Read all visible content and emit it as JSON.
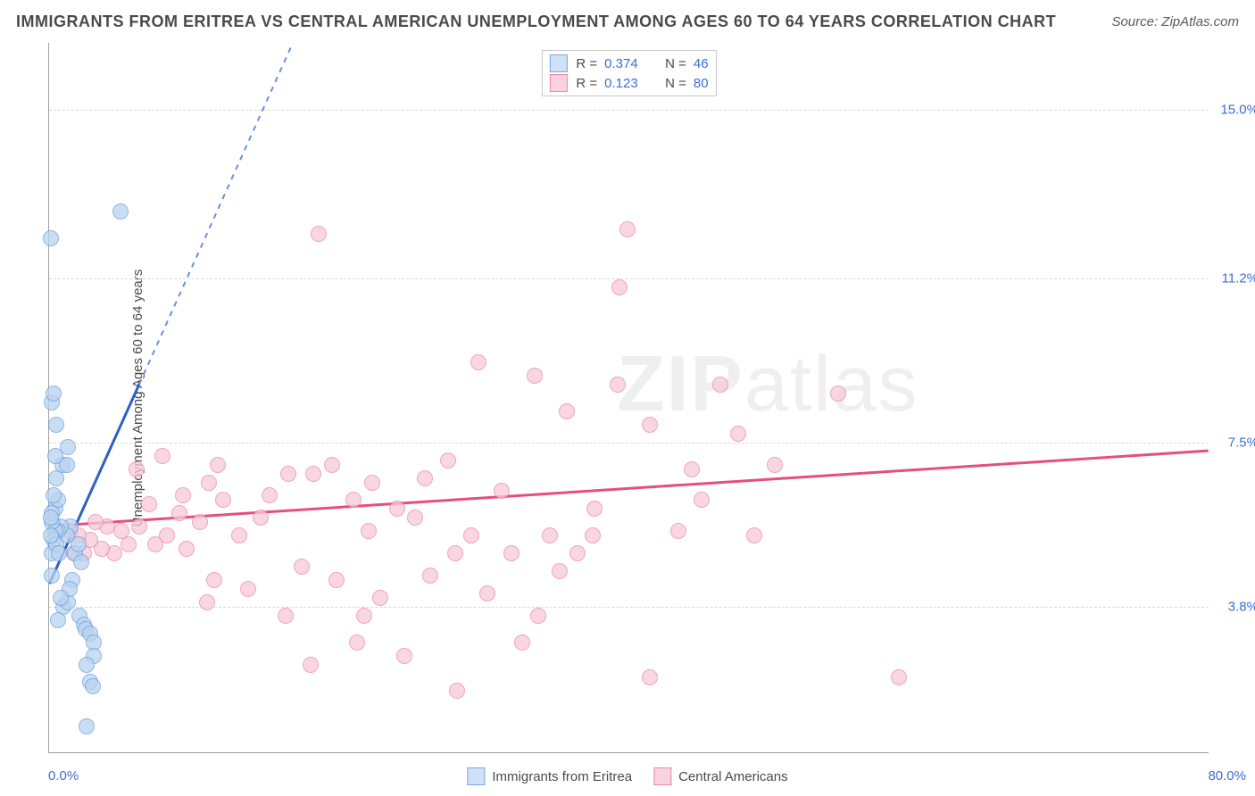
{
  "title": "IMMIGRANTS FROM ERITREA VS CENTRAL AMERICAN UNEMPLOYMENT AMONG AGES 60 TO 64 YEARS CORRELATION CHART",
  "source": "Source: ZipAtlas.com",
  "chart": {
    "type": "scatter",
    "ylabel": "Unemployment Among Ages 60 to 64 years",
    "xlim": [
      0,
      80
    ],
    "ylim": [
      0.5,
      16.5
    ],
    "yticks": [
      {
        "v": 3.8,
        "label": "3.8%"
      },
      {
        "v": 7.5,
        "label": "7.5%"
      },
      {
        "v": 11.2,
        "label": "11.2%"
      },
      {
        "v": 15.0,
        "label": "15.0%"
      }
    ],
    "xtick_left": "0.0%",
    "xtick_right": "80.0%",
    "background_color": "#ffffff",
    "grid_color": "#d8d8d8",
    "series": [
      {
        "name": "Immigrants from Eritrea",
        "marker_fill": "#b9d3f0",
        "marker_stroke": "#6a9fe0",
        "swatch_fill": "#cfe1f7",
        "swatch_stroke": "#7aa8e0",
        "marker_radius": 9,
        "trend_solid_color": "#2f5fc4",
        "trend_dashed_color": "#6a8fe0",
        "trend_point_1": {
          "x": 0,
          "y": 4.3
        },
        "trend_point_2": {
          "x": 6.2,
          "y": 8.8
        },
        "trend_extend_to_y": 16.5,
        "R": "0.374",
        "N": "46"
      },
      {
        "name": "Central Americans",
        "marker_fill": "#f7c9d6",
        "marker_stroke": "#e88aa5",
        "swatch_fill": "#f9d2de",
        "swatch_stroke": "#e88aa5",
        "marker_radius": 9,
        "trend_solid_color": "#e54f7b",
        "trend_point_1": {
          "x": 0,
          "y": 5.6
        },
        "trend_point_2": {
          "x": 80,
          "y": 7.3
        },
        "R": "0.123",
        "N": "80"
      }
    ],
    "watermark_bold": "ZIP",
    "watermark_rest": "atlas"
  },
  "points_blue": [
    [
      0.1,
      12.1
    ],
    [
      4.9,
      12.7
    ],
    [
      0.2,
      8.4
    ],
    [
      0.3,
      8.6
    ],
    [
      0.5,
      7.9
    ],
    [
      0.2,
      4.5
    ],
    [
      1.0,
      3.8
    ],
    [
      1.3,
      3.9
    ],
    [
      2.1,
      3.6
    ],
    [
      2.4,
      3.4
    ],
    [
      2.5,
      3.3
    ],
    [
      2.8,
      3.2
    ],
    [
      3.1,
      3.0
    ],
    [
      3.1,
      2.7
    ],
    [
      2.6,
      2.5
    ],
    [
      2.8,
      2.1
    ],
    [
      3.0,
      2.0
    ],
    [
      2.6,
      1.1
    ],
    [
      1.5,
      5.6
    ],
    [
      1.2,
      5.4
    ],
    [
      0.8,
      5.6
    ],
    [
      0.6,
      5.5
    ],
    [
      0.4,
      5.5
    ],
    [
      0.3,
      5.3
    ],
    [
      0.2,
      5.0
    ],
    [
      0.5,
      5.2
    ],
    [
      0.7,
      5.0
    ],
    [
      0.4,
      6.0
    ],
    [
      0.6,
      6.2
    ],
    [
      0.3,
      6.3
    ],
    [
      0.5,
      6.7
    ],
    [
      0.9,
      7.0
    ],
    [
      1.2,
      7.0
    ],
    [
      1.3,
      7.4
    ],
    [
      0.4,
      7.2
    ],
    [
      0.2,
      5.7
    ],
    [
      0.2,
      5.9
    ],
    [
      0.15,
      5.4
    ],
    [
      0.1,
      5.8
    ],
    [
      1.8,
      5.0
    ],
    [
      2.0,
      5.2
    ],
    [
      2.2,
      4.8
    ],
    [
      1.6,
      4.4
    ],
    [
      1.4,
      4.2
    ],
    [
      0.8,
      4.0
    ],
    [
      0.6,
      3.5
    ]
  ],
  "points_pink": [
    [
      39.9,
      12.3
    ],
    [
      18.6,
      12.2
    ],
    [
      39.3,
      11.0
    ],
    [
      29.6,
      9.3
    ],
    [
      39.2,
      8.8
    ],
    [
      46.3,
      8.8
    ],
    [
      54.4,
      8.6
    ],
    [
      41.4,
      7.9
    ],
    [
      35.7,
      8.2
    ],
    [
      47.5,
      7.7
    ],
    [
      44.3,
      6.9
    ],
    [
      50.0,
      7.0
    ],
    [
      45.0,
      6.2
    ],
    [
      48.6,
      5.4
    ],
    [
      43.4,
      5.5
    ],
    [
      37.5,
      5.4
    ],
    [
      34.5,
      5.4
    ],
    [
      31.9,
      5.0
    ],
    [
      29.1,
      5.4
    ],
    [
      28.0,
      5.0
    ],
    [
      25.2,
      5.8
    ],
    [
      24.0,
      6.0
    ],
    [
      22.0,
      5.5
    ],
    [
      21.0,
      6.2
    ],
    [
      22.3,
      6.6
    ],
    [
      25.9,
      6.7
    ],
    [
      27.5,
      7.1
    ],
    [
      19.5,
      7.0
    ],
    [
      18.2,
      6.8
    ],
    [
      16.5,
      6.8
    ],
    [
      15.2,
      6.3
    ],
    [
      14.6,
      5.8
    ],
    [
      13.1,
      5.4
    ],
    [
      12.0,
      6.2
    ],
    [
      11.0,
      6.6
    ],
    [
      11.6,
      7.0
    ],
    [
      10.4,
      5.7
    ],
    [
      9.5,
      5.1
    ],
    [
      9.0,
      5.9
    ],
    [
      8.1,
      5.4
    ],
    [
      7.3,
      5.2
    ],
    [
      6.9,
      6.1
    ],
    [
      6.2,
      5.6
    ],
    [
      5.5,
      5.2
    ],
    [
      5.0,
      5.5
    ],
    [
      4.5,
      5.0
    ],
    [
      4.0,
      5.6
    ],
    [
      3.6,
      5.1
    ],
    [
      3.2,
      5.7
    ],
    [
      2.8,
      5.3
    ],
    [
      2.4,
      5.0
    ],
    [
      2.0,
      5.4
    ],
    [
      1.7,
      5.0
    ],
    [
      1.4,
      5.5
    ],
    [
      17.4,
      4.7
    ],
    [
      19.8,
      4.4
    ],
    [
      22.8,
      4.0
    ],
    [
      21.7,
      3.6
    ],
    [
      16.3,
      3.6
    ],
    [
      13.7,
      4.2
    ],
    [
      11.4,
      4.4
    ],
    [
      10.9,
      3.9
    ],
    [
      21.2,
      3.0
    ],
    [
      32.6,
      3.0
    ],
    [
      24.5,
      2.7
    ],
    [
      28.1,
      1.9
    ],
    [
      18.0,
      2.5
    ],
    [
      41.4,
      2.2
    ],
    [
      58.6,
      2.2
    ],
    [
      30.2,
      4.1
    ],
    [
      33.7,
      3.6
    ],
    [
      35.2,
      4.6
    ],
    [
      37.6,
      6.0
    ],
    [
      31.2,
      6.4
    ],
    [
      26.3,
      4.5
    ],
    [
      33.5,
      9.0
    ],
    [
      6.0,
      6.9
    ],
    [
      7.8,
      7.2
    ],
    [
      9.2,
      6.3
    ],
    [
      36.4,
      5.0
    ]
  ]
}
